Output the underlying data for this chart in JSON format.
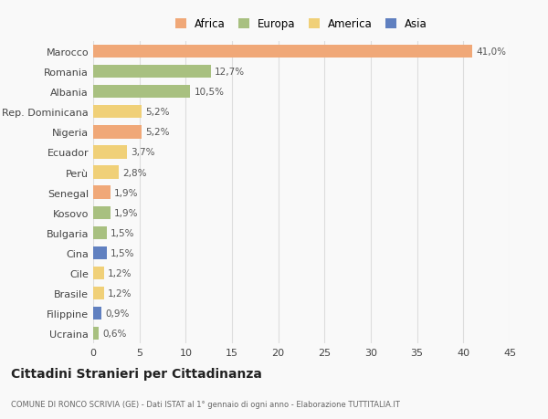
{
  "categories": [
    "Marocco",
    "Romania",
    "Albania",
    "Rep. Dominicana",
    "Nigeria",
    "Ecuador",
    "Perù",
    "Senegal",
    "Kosovo",
    "Bulgaria",
    "Cina",
    "Cile",
    "Brasile",
    "Filippine",
    "Ucraina"
  ],
  "values": [
    41.0,
    12.7,
    10.5,
    5.2,
    5.2,
    3.7,
    2.8,
    1.9,
    1.9,
    1.5,
    1.5,
    1.2,
    1.2,
    0.9,
    0.6
  ],
  "labels": [
    "41,0%",
    "12,7%",
    "10,5%",
    "5,2%",
    "5,2%",
    "3,7%",
    "2,8%",
    "1,9%",
    "1,9%",
    "1,5%",
    "1,5%",
    "1,2%",
    "1,2%",
    "0,9%",
    "0,6%"
  ],
  "colors": [
    "#f0a878",
    "#a8c080",
    "#a8c080",
    "#f0d078",
    "#f0a878",
    "#f0d078",
    "#f0d078",
    "#f0a878",
    "#a8c080",
    "#a8c080",
    "#6080c0",
    "#f0d078",
    "#f0d078",
    "#6080c0",
    "#a8c080"
  ],
  "continents": [
    "Africa",
    "Europa",
    "Europa",
    "America",
    "Africa",
    "America",
    "America",
    "Africa",
    "Europa",
    "Europa",
    "Asia",
    "America",
    "America",
    "Asia",
    "Europa"
  ],
  "legend": {
    "Africa": "#f0a878",
    "Europa": "#a8c080",
    "America": "#f0d078",
    "Asia": "#6080c0"
  },
  "title": "Cittadini Stranieri per Cittadinanza",
  "subtitle": "COMUNE DI RONCO SCRIVIA (GE) - Dati ISTAT al 1° gennaio di ogni anno - Elaborazione TUTTITALIA.IT",
  "xlim": [
    0,
    45
  ],
  "xticks": [
    0,
    5,
    10,
    15,
    20,
    25,
    30,
    35,
    40,
    45
  ],
  "background_color": "#f9f9f9",
  "bar_height": 0.65,
  "grid_color": "#dddddd"
}
